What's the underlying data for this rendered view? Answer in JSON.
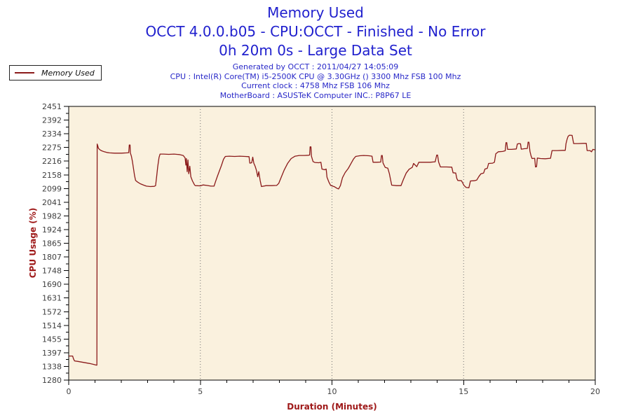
{
  "header": {
    "title_line1": "Memory Used",
    "title_line2": "OCCT 4.0.0.b05 - CPU:OCCT - Finished - No Error",
    "title_line3": "0h 20m 0s - Large Data Set",
    "info_lines": [
      "Generated by OCCT : 2011/04/27 14:05:09",
      "CPU : Intel(R) Core(TM) i5-2500K CPU @ 3.30GHz () 3300 Mhz FSB 100 Mhz",
      "Current clock : 4758 Mhz FSB 106 Mhz",
      "MotherBoard : ASUSTeK Computer INC.: P8P67 LE"
    ]
  },
  "legend": {
    "label": "Memory Used"
  },
  "colors": {
    "series": "#8B1A1A",
    "title_blue": "#2121CE",
    "info_blue": "#2828C8",
    "axis_label_red": "#9E1818",
    "plot_bg": "#FAF1DE",
    "plot_border": "#000000",
    "tick_text": "#3F3F3F",
    "grid": "#707070"
  },
  "chart_data": {
    "type": "line",
    "title": "Memory Used",
    "xlabel": "Duration (Minutes)",
    "ylabel": "CPU Usage (%)",
    "xlim": [
      0,
      20
    ],
    "ylim": [
      1280,
      2451
    ],
    "grid": "vertical-dotted-at-major-x",
    "legend_position": "top-left-outside",
    "x_major_ticks": [
      0,
      5,
      10,
      15,
      20
    ],
    "x_minor_step": 1,
    "gridlines_x": [
      5,
      10,
      15
    ],
    "y_tick_labels": [
      "1280",
      "1338",
      "1397",
      "1455",
      "1514",
      "1572",
      "1631",
      "1690",
      "1748",
      "1807",
      "1865",
      "1924",
      "1982",
      "2041",
      "2099",
      "2158",
      "2216",
      "2275",
      "2334",
      "2392",
      "2451"
    ],
    "series": [
      {
        "name": "Memory Used",
        "color": "#8B1A1A",
        "points": [
          [
            0.0,
            1383
          ],
          [
            0.15,
            1383
          ],
          [
            0.18,
            1371
          ],
          [
            0.22,
            1362
          ],
          [
            0.35,
            1360
          ],
          [
            0.5,
            1357
          ],
          [
            0.65,
            1354
          ],
          [
            0.8,
            1351
          ],
          [
            0.95,
            1347
          ],
          [
            1.05,
            1344
          ],
          [
            1.07,
            1344
          ],
          [
            1.08,
            2290
          ],
          [
            1.1,
            2284
          ],
          [
            1.13,
            2272
          ],
          [
            1.18,
            2266
          ],
          [
            1.25,
            2261
          ],
          [
            1.35,
            2257
          ],
          [
            1.45,
            2254
          ],
          [
            1.55,
            2252
          ],
          [
            1.75,
            2251
          ],
          [
            2.0,
            2251
          ],
          [
            2.2,
            2252
          ],
          [
            2.28,
            2253
          ],
          [
            2.3,
            2286
          ],
          [
            2.33,
            2286
          ],
          [
            2.34,
            2252
          ],
          [
            2.38,
            2238
          ],
          [
            2.42,
            2215
          ],
          [
            2.46,
            2185
          ],
          [
            2.5,
            2155
          ],
          [
            2.54,
            2134
          ],
          [
            2.62,
            2127
          ],
          [
            2.72,
            2120
          ],
          [
            2.85,
            2114
          ],
          [
            2.95,
            2110
          ],
          [
            3.1,
            2108
          ],
          [
            3.25,
            2109
          ],
          [
            3.3,
            2112
          ],
          [
            3.34,
            2150
          ],
          [
            3.38,
            2192
          ],
          [
            3.43,
            2232
          ],
          [
            3.47,
            2247
          ],
          [
            3.6,
            2247
          ],
          [
            3.8,
            2246
          ],
          [
            4.0,
            2247
          ],
          [
            4.2,
            2245
          ],
          [
            4.35,
            2241
          ],
          [
            4.42,
            2231
          ],
          [
            4.45,
            2200
          ],
          [
            4.47,
            2228
          ],
          [
            4.5,
            2172
          ],
          [
            4.53,
            2222
          ],
          [
            4.56,
            2163
          ],
          [
            4.6,
            2195
          ],
          [
            4.64,
            2150
          ],
          [
            4.7,
            2132
          ],
          [
            4.78,
            2115
          ],
          [
            4.81,
            2112
          ],
          [
            5.0,
            2111
          ],
          [
            5.1,
            2115
          ],
          [
            5.25,
            2113
          ],
          [
            5.4,
            2110
          ],
          [
            5.52,
            2110
          ],
          [
            5.58,
            2130
          ],
          [
            5.65,
            2153
          ],
          [
            5.72,
            2174
          ],
          [
            5.8,
            2198
          ],
          [
            5.88,
            2225
          ],
          [
            5.95,
            2237
          ],
          [
            6.1,
            2238
          ],
          [
            6.3,
            2237
          ],
          [
            6.5,
            2238
          ],
          [
            6.7,
            2237
          ],
          [
            6.85,
            2236
          ],
          [
            6.88,
            2208
          ],
          [
            6.95,
            2210
          ],
          [
            6.99,
            2234
          ],
          [
            7.03,
            2208
          ],
          [
            7.08,
            2195
          ],
          [
            7.13,
            2178
          ],
          [
            7.18,
            2150
          ],
          [
            7.22,
            2172
          ],
          [
            7.27,
            2135
          ],
          [
            7.32,
            2108
          ],
          [
            7.5,
            2112
          ],
          [
            7.7,
            2112
          ],
          [
            7.9,
            2113
          ],
          [
            7.98,
            2122
          ],
          [
            8.08,
            2150
          ],
          [
            8.18,
            2178
          ],
          [
            8.32,
            2208
          ],
          [
            8.45,
            2228
          ],
          [
            8.6,
            2238
          ],
          [
            8.76,
            2241
          ],
          [
            8.95,
            2241
          ],
          [
            9.1,
            2242
          ],
          [
            9.15,
            2243
          ],
          [
            9.17,
            2278
          ],
          [
            9.2,
            2278
          ],
          [
            9.22,
            2238
          ],
          [
            9.28,
            2215
          ],
          [
            9.35,
            2211
          ],
          [
            9.5,
            2210
          ],
          [
            9.58,
            2212
          ],
          [
            9.62,
            2183
          ],
          [
            9.72,
            2180
          ],
          [
            9.78,
            2183
          ],
          [
            9.81,
            2148
          ],
          [
            9.88,
            2128
          ],
          [
            9.95,
            2113
          ],
          [
            10.1,
            2107
          ],
          [
            10.2,
            2100
          ],
          [
            10.25,
            2098
          ],
          [
            10.32,
            2112
          ],
          [
            10.4,
            2146
          ],
          [
            10.5,
            2168
          ],
          [
            10.62,
            2186
          ],
          [
            10.72,
            2206
          ],
          [
            10.82,
            2226
          ],
          [
            10.9,
            2237
          ],
          [
            11.05,
            2240
          ],
          [
            11.2,
            2241
          ],
          [
            11.4,
            2240
          ],
          [
            11.52,
            2238
          ],
          [
            11.56,
            2212
          ],
          [
            11.7,
            2212
          ],
          [
            11.85,
            2213
          ],
          [
            11.88,
            2241
          ],
          [
            11.91,
            2241
          ],
          [
            11.94,
            2209
          ],
          [
            12.02,
            2190
          ],
          [
            12.12,
            2187
          ],
          [
            12.18,
            2163
          ],
          [
            12.22,
            2140
          ],
          [
            12.27,
            2114
          ],
          [
            12.45,
            2112
          ],
          [
            12.62,
            2112
          ],
          [
            12.72,
            2140
          ],
          [
            12.82,
            2166
          ],
          [
            12.93,
            2182
          ],
          [
            13.05,
            2190
          ],
          [
            13.1,
            2207
          ],
          [
            13.22,
            2193
          ],
          [
            13.3,
            2212
          ],
          [
            13.5,
            2212
          ],
          [
            13.72,
            2212
          ],
          [
            13.92,
            2214
          ],
          [
            13.98,
            2243
          ],
          [
            14.01,
            2243
          ],
          [
            14.05,
            2213
          ],
          [
            14.12,
            2192
          ],
          [
            14.35,
            2192
          ],
          [
            14.55,
            2191
          ],
          [
            14.6,
            2167
          ],
          [
            14.7,
            2166
          ],
          [
            14.74,
            2143
          ],
          [
            14.78,
            2134
          ],
          [
            14.92,
            2133
          ],
          [
            15.02,
            2112
          ],
          [
            15.1,
            2104
          ],
          [
            15.2,
            2103
          ],
          [
            15.26,
            2132
          ],
          [
            15.4,
            2133
          ],
          [
            15.5,
            2136
          ],
          [
            15.58,
            2151
          ],
          [
            15.66,
            2163
          ],
          [
            15.76,
            2166
          ],
          [
            15.81,
            2183
          ],
          [
            15.9,
            2186
          ],
          [
            15.95,
            2207
          ],
          [
            16.1,
            2208
          ],
          [
            16.17,
            2212
          ],
          [
            16.22,
            2248
          ],
          [
            16.32,
            2257
          ],
          [
            16.48,
            2258
          ],
          [
            16.58,
            2261
          ],
          [
            16.61,
            2296
          ],
          [
            16.64,
            2296
          ],
          [
            16.67,
            2267
          ],
          [
            16.82,
            2267
          ],
          [
            17.0,
            2269
          ],
          [
            17.04,
            2290
          ],
          [
            17.1,
            2292
          ],
          [
            17.16,
            2291
          ],
          [
            17.19,
            2268
          ],
          [
            17.32,
            2270
          ],
          [
            17.42,
            2271
          ],
          [
            17.45,
            2298
          ],
          [
            17.48,
            2298
          ],
          [
            17.52,
            2258
          ],
          [
            17.56,
            2240
          ],
          [
            17.6,
            2228
          ],
          [
            17.7,
            2229
          ],
          [
            17.73,
            2192
          ],
          [
            17.77,
            2193
          ],
          [
            17.8,
            2230
          ],
          [
            17.92,
            2228
          ],
          [
            18.1,
            2227
          ],
          [
            18.3,
            2229
          ],
          [
            18.36,
            2262
          ],
          [
            18.55,
            2262
          ],
          [
            18.75,
            2263
          ],
          [
            18.86,
            2263
          ],
          [
            18.89,
            2292
          ],
          [
            18.93,
            2310
          ],
          [
            18.97,
            2323
          ],
          [
            19.02,
            2328
          ],
          [
            19.12,
            2327
          ],
          [
            19.15,
            2309
          ],
          [
            19.18,
            2292
          ],
          [
            19.35,
            2292
          ],
          [
            19.55,
            2293
          ],
          [
            19.66,
            2293
          ],
          [
            19.69,
            2262
          ],
          [
            19.8,
            2262
          ],
          [
            19.86,
            2257
          ],
          [
            19.91,
            2267
          ],
          [
            20.0,
            2265
          ]
        ]
      }
    ]
  }
}
